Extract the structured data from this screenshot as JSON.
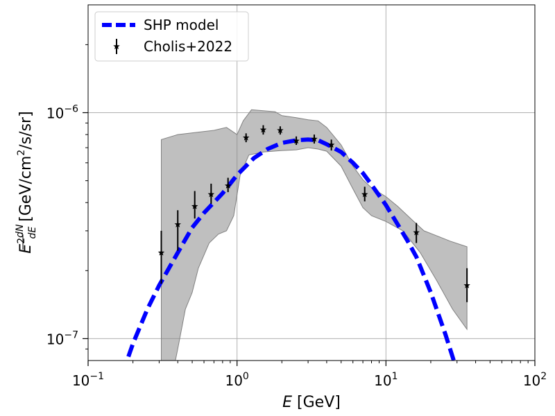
{
  "chart_data": {
    "type": "line",
    "xlabel_symbol": "E",
    "xlabel_unit": "[GeV]",
    "ylabel_main": "E",
    "ylabel_sup": "2",
    "ylabel_frac_num": "dN",
    "ylabel_frac_den": "dE",
    "ylabel_unit_part1": "[GeV/cm",
    "ylabel_unit_sup": "2",
    "ylabel_unit_part2": "/s/sr]",
    "x_scale": "log",
    "y_scale": "log",
    "xlim": [
      0.1,
      100
    ],
    "ylim": [
      8e-08,
      3e-06
    ],
    "grid": true,
    "legend_position": "top-left",
    "x_major_ticks": [
      {
        "value": 0.1,
        "base": "10",
        "exp": "−1"
      },
      {
        "value": 1,
        "base": "10",
        "exp": "0"
      },
      {
        "value": 10,
        "base": "10",
        "exp": "1"
      },
      {
        "value": 100,
        "base": "10",
        "exp": "2"
      }
    ],
    "y_major_ticks": [
      {
        "value": 1e-07,
        "base": "10",
        "exp": "−7"
      },
      {
        "value": 1e-06,
        "base": "10",
        "exp": "−6"
      }
    ],
    "series": [
      {
        "name": "SHP model",
        "kind": "model-curve",
        "color": "#0000ff",
        "line_style": "dashed",
        "x": [
          0.17,
          0.2,
          0.25,
          0.3,
          0.4,
          0.5,
          0.6,
          0.8,
          1.0,
          1.3,
          1.6,
          2.0,
          2.5,
          3.0,
          3.5,
          4.0,
          5.0,
          6.0,
          7.0,
          8.0,
          10.0,
          12.0,
          14.0,
          16.0,
          20.0,
          25.0,
          30.0
        ],
        "y": [
          7e-08,
          9.5e-08,
          1.35e-07,
          1.72e-07,
          2.4e-07,
          3.1e-07,
          3.6e-07,
          4.4e-07,
          5.3e-07,
          6.3e-07,
          6.9e-07,
          7.35e-07,
          7.55e-07,
          7.6e-07,
          7.55e-07,
          7.25e-07,
          6.7e-07,
          6e-07,
          5.4e-07,
          4.8e-07,
          3.9e-07,
          3.2e-07,
          2.7e-07,
          2.3e-07,
          1.6e-07,
          1.05e-07,
          7.2e-08
        ]
      },
      {
        "name": "Cholis+2022",
        "kind": "data-points",
        "color": "#000000",
        "marker": "star",
        "x": [
          0.31,
          0.4,
          0.52,
          0.67,
          0.87,
          1.15,
          1.5,
          1.95,
          2.5,
          3.3,
          4.3,
          7.2,
          16.0,
          35.0
        ],
        "y": [
          2.4e-07,
          3.2e-07,
          3.85e-07,
          4.35e-07,
          4.75e-07,
          7.75e-07,
          8.4e-07,
          8.35e-07,
          7.5e-07,
          7.65e-07,
          7.2e-07,
          4.35e-07,
          2.95e-07,
          1.72e-07
        ],
        "y_low": [
          1.75e-07,
          2.45e-07,
          3.4e-07,
          3.95e-07,
          4.45e-07,
          7.4e-07,
          8e-07,
          8e-07,
          7.2e-07,
          7.3e-07,
          6.8e-07,
          4.05e-07,
          2.65e-07,
          1.45e-07
        ],
        "y_high": [
          3e-07,
          3.7e-07,
          4.5e-07,
          4.85e-07,
          5.15e-07,
          8.1e-07,
          8.8e-07,
          8.7e-07,
          7.85e-07,
          8e-07,
          7.6e-07,
          4.7e-07,
          3.25e-07,
          2.05e-07
        ]
      }
    ],
    "uncertainty_band": {
      "color": "#808080",
      "upper": {
        "x": [
          0.31,
          0.4,
          0.55,
          0.7,
          0.85,
          1.0,
          1.1,
          1.25,
          1.5,
          1.8,
          2.0,
          2.5,
          3.0,
          3.5,
          4.0,
          5.0,
          6.0,
          7.0,
          8.0,
          10.0,
          12.0,
          15.0,
          18.0,
          22.0,
          27.0,
          35.0
        ],
        "y": [
          7.6e-07,
          8e-07,
          8.2e-07,
          8.35e-07,
          8.6e-07,
          8e-07,
          9.2e-07,
          1.03e-06,
          1.02e-06,
          1.01e-06,
          9.7e-07,
          9.5e-07,
          9.3e-07,
          9.2e-07,
          8.6e-07,
          7.2e-07,
          5.8e-07,
          5.05e-07,
          4.65e-07,
          4.25e-07,
          3.85e-07,
          3.35e-07,
          3e-07,
          2.85e-07,
          2.7e-07,
          2.55e-07
        ]
      },
      "lower": {
        "x": [
          0.31,
          0.37,
          0.4,
          0.45,
          0.5,
          0.55,
          0.65,
          0.75,
          0.85,
          0.95,
          1.05,
          1.2,
          1.5,
          2.0,
          2.5,
          3.0,
          3.5,
          4.0,
          5.0,
          6.0,
          7.0,
          8.0,
          10.0,
          13.0,
          17.0,
          22.0,
          28.0,
          35.0
        ],
        "y": [
          7e-08,
          7e-08,
          9e-08,
          1.35e-07,
          1.6e-07,
          2.05e-07,
          2.65e-07,
          2.9e-07,
          3e-07,
          3.5e-07,
          5.3e-07,
          6.5e-07,
          6.7e-07,
          6.8e-07,
          6.85e-07,
          7e-07,
          6.9e-07,
          6.75e-07,
          5.8e-07,
          4.6e-07,
          3.8e-07,
          3.5e-07,
          3.3e-07,
          3e-07,
          2.4e-07,
          1.8e-07,
          1.35e-07,
          1.1e-07
        ]
      }
    }
  }
}
